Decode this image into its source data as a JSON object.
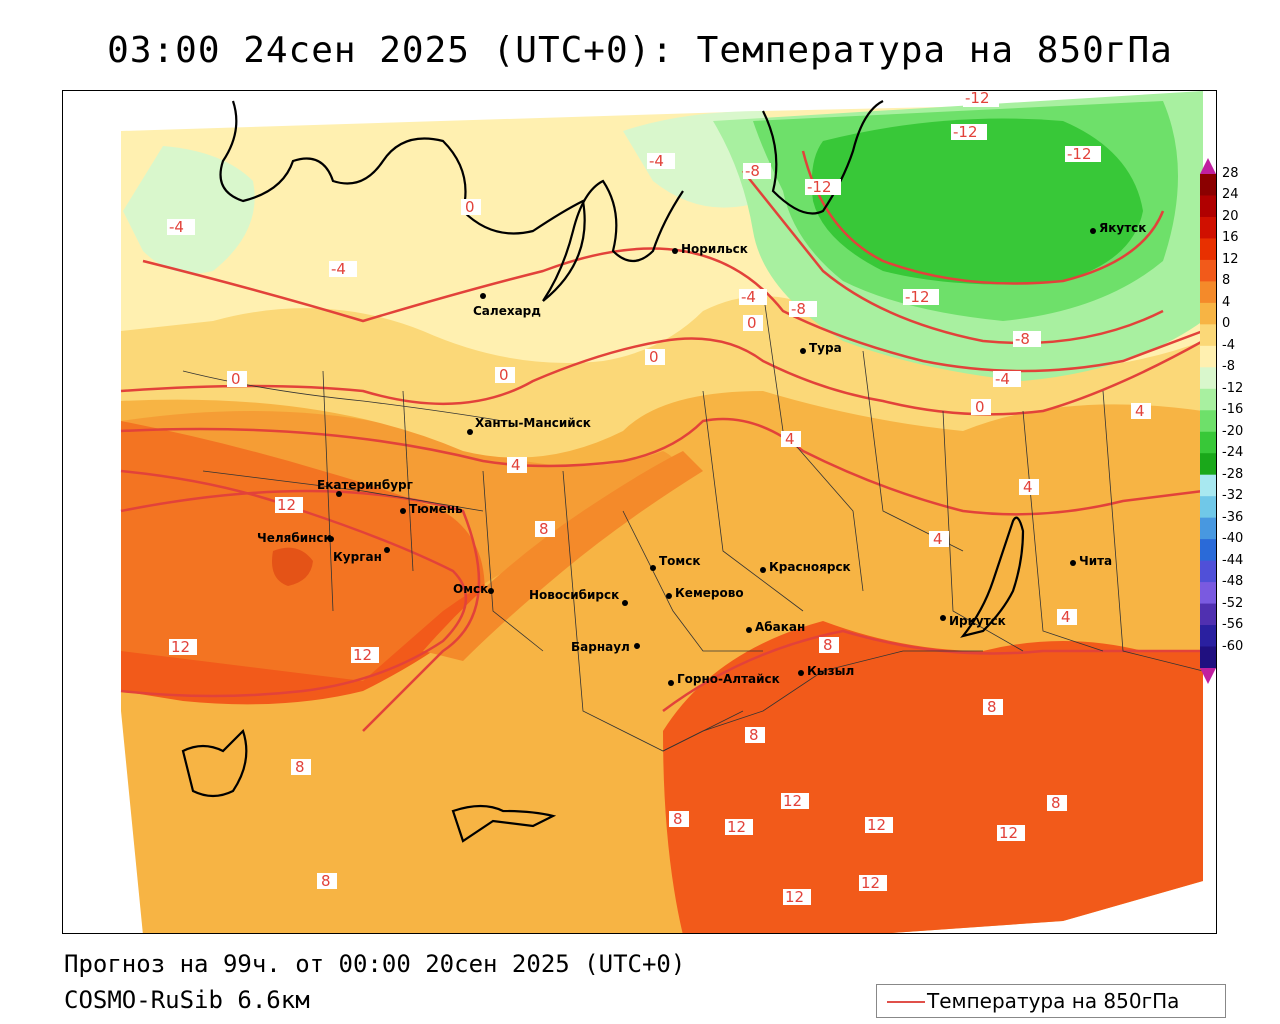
{
  "header": {
    "title": "03:00 24сен 2025 (UTC+0): Температура на 850гПа"
  },
  "footer": {
    "forecast": "Прогноз на 99ч. от 00:00 20сен 2025 (UTC+0)",
    "model": "COSMO-RuSib 6.6км"
  },
  "legend": {
    "label": "Температура на 850гПа",
    "line_color": "#e0504a"
  },
  "colorbar": {
    "ticks": [
      "28",
      "24",
      "20",
      "16",
      "12",
      "8",
      "4",
      "0",
      "-4",
      "-8",
      "-12",
      "-16",
      "-20",
      "-24",
      "-28",
      "-32",
      "-36",
      "-40",
      "-44",
      "-48",
      "-52",
      "-56",
      "-60"
    ],
    "colors": [
      "#8b0000",
      "#b00000",
      "#d01000",
      "#e83000",
      "#f25a1a",
      "#f48a2a",
      "#f7b444",
      "#fbd878",
      "#fff0b0",
      "#d9f7cc",
      "#a8f0a0",
      "#6ee06a",
      "#38c838",
      "#1aa81a",
      "#a8e8f0",
      "#70c8e8",
      "#4898e0",
      "#2a6ad8",
      "#5050d8",
      "#7a5ae0",
      "#5030b0",
      "#2a20a0",
      "#201080"
    ],
    "top_color": "#c020a0",
    "bottom_color": "#c020a0"
  },
  "cities": [
    {
      "name": "Салехард"
    },
    {
      "name": "Норильск"
    },
    {
      "name": "Якутск"
    },
    {
      "name": "Тура"
    },
    {
      "name": "Ханты-Мансийск"
    },
    {
      "name": "Екатеринбург"
    },
    {
      "name": "Тюмень"
    },
    {
      "name": "Челябинск"
    },
    {
      "name": "Курган"
    },
    {
      "name": "Омск"
    },
    {
      "name": "Новосибирск"
    },
    {
      "name": "Томск"
    },
    {
      "name": "Кемерово"
    },
    {
      "name": "Красноярск"
    },
    {
      "name": "Барнаул"
    },
    {
      "name": "Абакан"
    },
    {
      "name": "Горно-Алтайск"
    },
    {
      "name": "Кызыл"
    },
    {
      "name": "Иркутск"
    },
    {
      "name": "Чита"
    }
  ],
  "contour_labels": [
    "-12",
    "-12",
    "-12",
    "-12",
    "-12",
    "-8",
    "-8",
    "-8",
    "-4",
    "-4",
    "-4",
    "-4",
    "-4",
    "0",
    "0",
    "0",
    "0",
    "0",
    "0",
    "4",
    "4",
    "4",
    "4",
    "4",
    "4",
    "8",
    "8",
    "8",
    "8",
    "8",
    "8",
    "8",
    "8",
    "12",
    "12",
    "12",
    "12",
    "12",
    "12",
    "12",
    "12",
    "12"
  ]
}
